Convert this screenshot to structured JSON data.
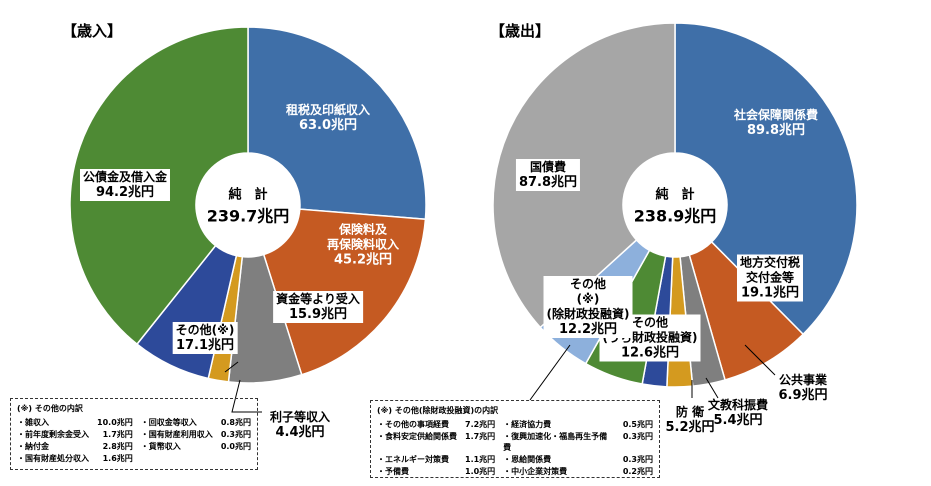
{
  "chart_data": [
    {
      "type": "pie",
      "title": "【歳入】",
      "center_title": "純　計",
      "total": 239.7,
      "total_label": "239.7兆円",
      "categories": [
        "租税及印紙収入",
        "保険料及\n再保険料収入",
        "資金等より受入",
        "利子等収入",
        "その他(※)",
        "公債金及借入金"
      ],
      "values": [
        63.0,
        45.2,
        15.9,
        4.4,
        17.1,
        94.2
      ],
      "value_labels": [
        "63.0兆円",
        "45.2兆円",
        "15.9兆円",
        "4.4兆円",
        "17.1兆円",
        "94.2兆円"
      ],
      "colors": [
        "#3f6fa8",
        "#c55a22",
        "#7f7f7f",
        "#d49a1f",
        "#2d4a9a",
        "#4e8a34"
      ]
    },
    {
      "type": "pie",
      "title": "【歳出】",
      "center_title": "純　計",
      "total": 238.9,
      "total_label": "238.9兆円",
      "categories": [
        "社会保障関係費",
        "地方交付税\n交付金等",
        "公共事業",
        "文教科振費",
        "防 衛",
        "その他\n(うち財政投融資)",
        "その他\n(※)\n(除財政投融資)",
        "国債費"
      ],
      "values": [
        89.8,
        19.1,
        6.9,
        5.4,
        5.2,
        12.6,
        12.2,
        87.8
      ],
      "value_labels": [
        "89.8兆円",
        "19.1兆円",
        "6.9兆円",
        "5.4兆円",
        "5.2兆円",
        "12.6兆円",
        "12.2兆円",
        "87.8兆円"
      ],
      "colors": [
        "#3f6fa8",
        "#c55a22",
        "#7f7f7f",
        "#d49a1f",
        "#2d4a9a",
        "#4e8a34",
        "#8db0dc",
        "#a6a6a6"
      ]
    }
  ],
  "notes": [
    {
      "title": "(※) その他の内訳",
      "items": [
        [
          "・雑収入",
          "10.0兆円"
        ],
        [
          "・回収金等収入",
          "0.8兆円"
        ],
        [
          "・前年度剰余金受入",
          "1.7兆円"
        ],
        [
          "・国有財産利用収入",
          "0.3兆円"
        ],
        [
          "・納付金",
          "2.8兆円"
        ],
        [
          "・貨幣収入",
          "0.0兆円"
        ],
        [
          "・国有財産処分収入",
          "1.6兆円"
        ]
      ]
    },
    {
      "title": "(※) その他(除財政投融資)の内訳",
      "items": [
        [
          "・その他の事項経費",
          "7.2兆円"
        ],
        [
          "・経済協力費",
          "0.5兆円"
        ],
        [
          "・食料安定供給関係費",
          "1.7兆円"
        ],
        [
          "・復興加速化・福島再生予備費",
          "0.3兆円"
        ],
        [
          "・エネルギー対策費",
          "1.1兆円"
        ],
        [
          "・恩給関係費",
          "0.3兆円"
        ],
        [
          "・予備費",
          "1.0兆円"
        ],
        [
          "・中小企業対策費",
          "0.2兆円"
        ]
      ]
    }
  ]
}
